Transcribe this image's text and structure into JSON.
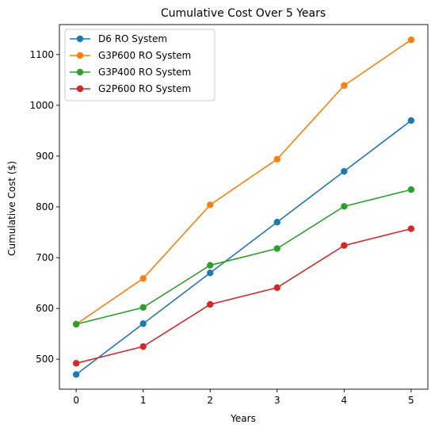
{
  "chart_data": {
    "type": "line",
    "title": "Cumulative Cost Over 5 Years",
    "xlabel": "Years",
    "ylabel": "Cumulative Cost ($)",
    "x": [
      0,
      1,
      2,
      3,
      4,
      5
    ],
    "xlim": [
      -0.25,
      5.25
    ],
    "ylim": [
      441,
      1159
    ],
    "xticks": [
      0,
      1,
      2,
      3,
      4,
      5
    ],
    "yticks": [
      500,
      600,
      700,
      800,
      900,
      1000,
      1100
    ],
    "grid": false,
    "legend_position": "top-left",
    "series": [
      {
        "name": "D6 RO System",
        "color": "#1f77b4",
        "values": [
          470,
          570,
          670,
          770,
          870,
          970
        ]
      },
      {
        "name": "G3P600 RO System",
        "color": "#ff7f0e",
        "values": [
          569,
          659,
          804,
          894,
          1039,
          1129
        ]
      },
      {
        "name": "G3P400 RO System",
        "color": "#2ca02c",
        "values": [
          569,
          602,
          685,
          718,
          801,
          834
        ]
      },
      {
        "name": "G2P600 RO System",
        "color": "#d62728",
        "values": [
          492,
          525,
          608,
          641,
          724,
          757
        ]
      }
    ]
  }
}
